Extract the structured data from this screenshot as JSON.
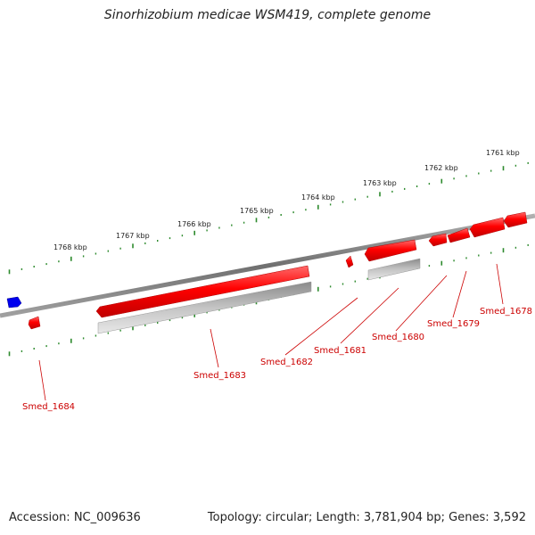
{
  "title": "Sinorhizobium medicae WSM419, complete genome",
  "footer": {
    "accession": "Accession: NC_009636",
    "summary": "Topology: circular; Length: 3,781,904 bp; Genes: 3,592"
  },
  "colors": {
    "gene": "#ff0000",
    "gene_shade": "#c80000",
    "gene_blue": "#0000ee",
    "cds": "#c0c0c0",
    "backbone": "#808080",
    "tick": "#2d8a2d",
    "label": "#cc0000"
  },
  "ticks": {
    "labels": [
      "1768 kbp",
      "1767 kbp",
      "1766 kbp",
      "1765 kbp",
      "1764 kbp",
      "1763 kbp",
      "1762 kbp",
      "1761 kbp"
    ]
  },
  "genes": [
    "Smed_1684",
    "Smed_1683",
    "Smed_1682",
    "Smed_1681",
    "Smed_1680",
    "Smed_1679",
    "Smed_1678"
  ]
}
